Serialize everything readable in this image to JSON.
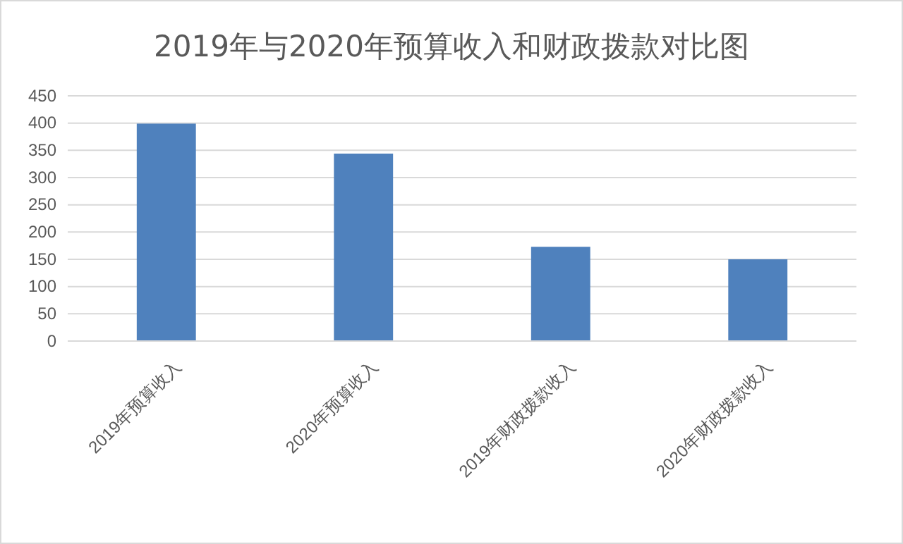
{
  "chart_data": {
    "type": "bar",
    "title": "2019年与2020年预算收入和财政拨款对比图",
    "categories": [
      "2019年预算收入",
      "2020年预算收入",
      "2019年财政拨款收入",
      "2020年财政拨款收入"
    ],
    "values": [
      399,
      344,
      173,
      150
    ],
    "color": "#4f81bd",
    "ylim": [
      0,
      450
    ],
    "yticks": [
      0,
      50,
      100,
      150,
      200,
      250,
      300,
      350,
      400,
      450
    ],
    "grid": "y"
  }
}
